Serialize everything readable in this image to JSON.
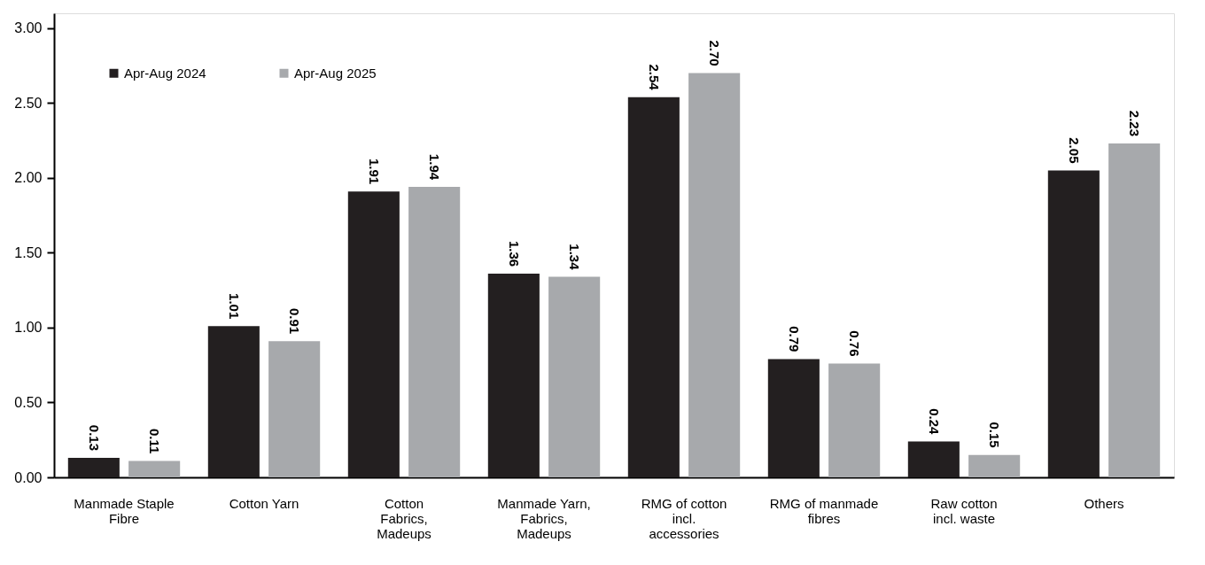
{
  "chart_data": {
    "type": "bar",
    "categories": [
      "Manmade Staple Fibre",
      "Cotton Yarn",
      "Cotton Fabrics, Madeups",
      "Manmade Yarn, Fabrics, Madeups",
      "RMG of cotton incl. accessories",
      "RMG of manmade fibres",
      "Raw cotton incl. waste",
      "Others"
    ],
    "series": [
      {
        "name": "Apr-Aug 2024",
        "color": "#231f20",
        "values": [
          0.13,
          1.01,
          1.91,
          1.36,
          2.54,
          0.79,
          0.24,
          2.05
        ],
        "value_labels": [
          "0.13",
          "1.01",
          "1.91",
          "1.36",
          "2.54",
          "0.79",
          "0.24",
          "2.05"
        ]
      },
      {
        "name": "Apr-Aug 2025",
        "color": "#a7a9ac",
        "values": [
          0.11,
          0.91,
          1.94,
          1.34,
          2.7,
          0.76,
          0.15,
          2.23
        ],
        "value_labels": [
          "0.11",
          "0.91",
          "1.94",
          "1.34",
          "2.70",
          "0.76",
          "0.15",
          "2.23"
        ]
      }
    ],
    "ylim": [
      0,
      3.1
    ],
    "yticks": [
      {
        "value": 0,
        "label": "0.00"
      },
      {
        "value": 0.5,
        "label": "0.50"
      },
      {
        "value": 1,
        "label": "1.00"
      },
      {
        "value": 1.5,
        "label": "1.50"
      },
      {
        "value": 2,
        "label": "2.00"
      },
      {
        "value": 2.5,
        "label": "2.50"
      },
      {
        "value": 3,
        "label": "3.00"
      }
    ],
    "grid": false,
    "legend": "top left"
  }
}
